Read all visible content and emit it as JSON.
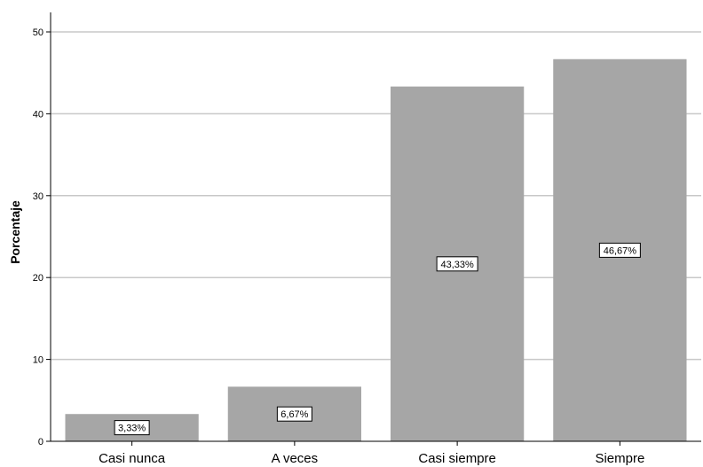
{
  "chart_data": {
    "type": "bar",
    "categories": [
      "Casi nunca",
      "A veces",
      "Casi siempre",
      "Siempre"
    ],
    "values": [
      3.33,
      6.67,
      43.33,
      46.67
    ],
    "data_labels": [
      "3,33%",
      "6,67%",
      "43,33%",
      "46,67%"
    ],
    "ylabel": "Porcentaje",
    "xlabel": "",
    "ylim": [
      0,
      50
    ],
    "yticks": [
      0,
      10,
      20,
      30,
      40,
      50
    ],
    "grid": "horizontal",
    "bar_color": "#a6a6a6",
    "grid_color": "#c8c8c8"
  }
}
